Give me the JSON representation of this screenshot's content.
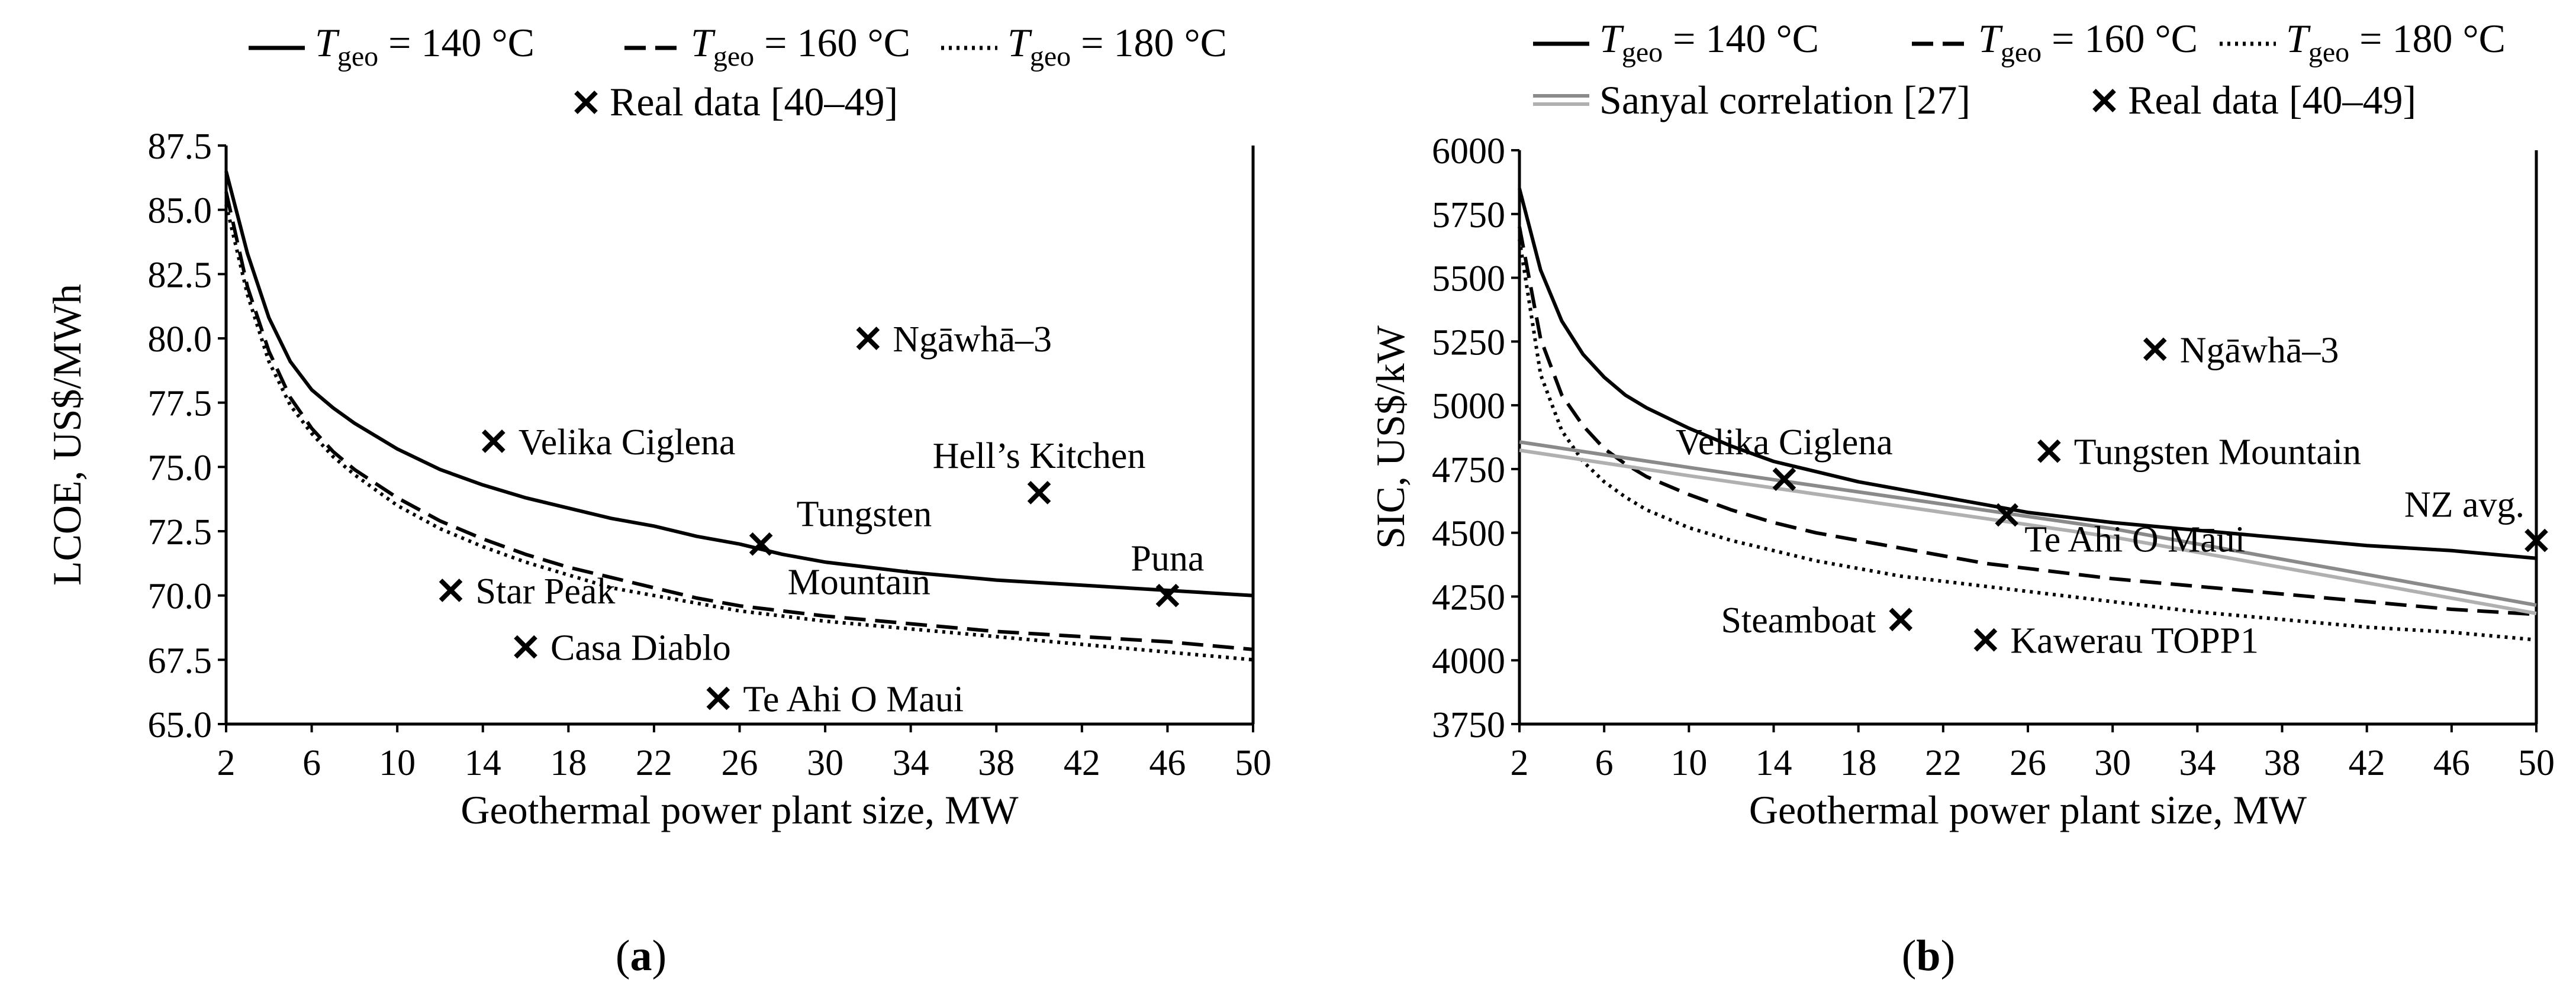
{
  "chart_data": [
    {
      "panel": "a",
      "type": "line",
      "caption": "(a)",
      "ylabel": "LCOE, US$/MWh",
      "xlabel": "Geothermal power plant size, MW",
      "xlim": [
        2,
        50
      ],
      "ylim": [
        65.0,
        87.5
      ],
      "xticks": [
        2,
        6,
        10,
        14,
        18,
        22,
        26,
        30,
        34,
        38,
        42,
        46,
        50
      ],
      "yticks": [
        65.0,
        67.5,
        70.0,
        72.5,
        75.0,
        77.5,
        80.0,
        82.5,
        85.0,
        87.5
      ],
      "ytick_labels": [
        "65.0",
        "67.5",
        "70.0",
        "72.5",
        "75.0",
        "77.5",
        "80.0",
        "82.5",
        "85.0",
        "87.5"
      ],
      "legend": {
        "prefix": "T",
        "subscript": "geo",
        "entries": [
          {
            "value_text": " = 140 °C",
            "style": "solid"
          },
          {
            "value_text": " = 160 °C",
            "style": "dashed"
          },
          {
            "value_text": " = 180 °C",
            "style": "dotted"
          }
        ],
        "real_data_label": "Real data [40–49]"
      },
      "series": [
        {
          "name": "T_geo = 140 °C",
          "style": "solid",
          "x": [
            2,
            3,
            4,
            5,
            6,
            7,
            8,
            10,
            12,
            14,
            16,
            18,
            20,
            22,
            24,
            26,
            28,
            30,
            34,
            38,
            42,
            46,
            50
          ],
          "y": [
            86.5,
            83.3,
            80.8,
            79.1,
            78.0,
            77.3,
            76.7,
            75.7,
            74.9,
            74.3,
            73.8,
            73.4,
            73.0,
            72.7,
            72.3,
            72.0,
            71.6,
            71.3,
            70.9,
            70.6,
            70.4,
            70.2,
            70.0
          ]
        },
        {
          "name": "T_geo = 160 °C",
          "style": "dashed",
          "x": [
            2,
            3,
            4,
            5,
            6,
            7,
            8,
            10,
            12,
            14,
            16,
            18,
            20,
            22,
            24,
            26,
            28,
            30,
            34,
            38,
            42,
            46,
            50
          ],
          "y": [
            85.7,
            82.0,
            79.5,
            77.7,
            76.5,
            75.6,
            74.9,
            73.8,
            72.9,
            72.2,
            71.6,
            71.1,
            70.7,
            70.3,
            69.9,
            69.6,
            69.4,
            69.2,
            68.9,
            68.6,
            68.4,
            68.2,
            67.9
          ]
        },
        {
          "name": "T_geo = 180 °C",
          "style": "dotted",
          "x": [
            2,
            3,
            4,
            5,
            6,
            7,
            8,
            10,
            12,
            14,
            16,
            18,
            20,
            22,
            24,
            26,
            28,
            30,
            34,
            38,
            42,
            46,
            50
          ],
          "y": [
            85.2,
            81.7,
            79.1,
            77.4,
            76.3,
            75.4,
            74.7,
            73.5,
            72.6,
            71.9,
            71.3,
            70.8,
            70.3,
            70.0,
            69.7,
            69.4,
            69.2,
            69.0,
            68.7,
            68.4,
            68.1,
            67.8,
            67.5
          ]
        }
      ],
      "points": [
        {
          "label": "Ngāwhā–3",
          "x": 32,
          "y": 80.0,
          "anchor": "right"
        },
        {
          "label": "Velika Ciglena",
          "x": 14.5,
          "y": 76.0,
          "anchor": "right"
        },
        {
          "label": "Hell’s Kitchen",
          "x": 40,
          "y": 74.0,
          "anchor": "above"
        },
        {
          "label": "Tungsten Mountain",
          "lines": [
            "Tungsten",
            "Mountain"
          ],
          "x": 27,
          "y": 72.0,
          "anchor": "split"
        },
        {
          "label": "Puna",
          "x": 46,
          "y": 70.0,
          "anchor": "above"
        },
        {
          "label": "Star Peak",
          "x": 12.5,
          "y": 70.2,
          "anchor": "right"
        },
        {
          "label": "Casa Diablo",
          "x": 16,
          "y": 68.0,
          "anchor": "right"
        },
        {
          "label": "Te Ahi O Maui",
          "x": 25,
          "y": 66.0,
          "anchor": "right"
        }
      ]
    },
    {
      "panel": "b",
      "type": "line",
      "caption": "(b)",
      "ylabel": "SIC, US$/kW",
      "xlabel": "Geothermal power plant size, MW",
      "xlim": [
        2,
        50
      ],
      "ylim": [
        3750,
        6000
      ],
      "xticks": [
        2,
        6,
        10,
        14,
        18,
        22,
        26,
        30,
        34,
        38,
        42,
        46,
        50
      ],
      "yticks": [
        3750,
        4000,
        4250,
        4500,
        4750,
        5000,
        5250,
        5500,
        5750,
        6000
      ],
      "ytick_labels": [
        "3750",
        "4000",
        "4250",
        "4500",
        "4750",
        "5000",
        "5250",
        "5500",
        "5750",
        "6000"
      ],
      "legend": {
        "prefix": "T",
        "subscript": "geo",
        "entries": [
          {
            "value_text": " = 140 °C",
            "style": "solid"
          },
          {
            "value_text": " = 160 °C",
            "style": "dashed"
          },
          {
            "value_text": " = 180 °C",
            "style": "dotted"
          }
        ],
        "sanyal_label": "Sanyal correlation [27]",
        "real_data_label": "Real data [40–49]"
      },
      "series": [
        {
          "name": "T_geo = 140 °C",
          "style": "solid",
          "x": [
            2,
            3,
            4,
            5,
            6,
            7,
            8,
            10,
            12,
            14,
            16,
            18,
            20,
            22,
            24,
            26,
            28,
            30,
            34,
            38,
            42,
            46,
            50
          ],
          "y": [
            5850,
            5530,
            5330,
            5200,
            5110,
            5040,
            4990,
            4910,
            4840,
            4780,
            4740,
            4700,
            4670,
            4640,
            4610,
            4580,
            4560,
            4540,
            4510,
            4480,
            4450,
            4430,
            4400
          ]
        },
        {
          "name": "T_geo = 160 °C",
          "style": "dashed",
          "x": [
            2,
            3,
            4,
            5,
            6,
            7,
            8,
            10,
            12,
            14,
            16,
            18,
            20,
            22,
            24,
            26,
            28,
            30,
            34,
            38,
            42,
            46,
            50
          ],
          "y": [
            5700,
            5260,
            5040,
            4920,
            4830,
            4770,
            4720,
            4650,
            4590,
            4540,
            4500,
            4470,
            4440,
            4410,
            4380,
            4360,
            4340,
            4320,
            4290,
            4260,
            4230,
            4200,
            4180
          ]
        },
        {
          "name": "T_geo = 180 °C",
          "style": "dotted",
          "x": [
            2,
            3,
            4,
            5,
            6,
            7,
            8,
            10,
            12,
            14,
            16,
            18,
            20,
            22,
            24,
            26,
            28,
            30,
            34,
            38,
            42,
            46,
            50
          ],
          "y": [
            5650,
            5120,
            4900,
            4780,
            4700,
            4640,
            4590,
            4520,
            4470,
            4430,
            4390,
            4360,
            4330,
            4310,
            4290,
            4270,
            4250,
            4230,
            4190,
            4160,
            4130,
            4110,
            4080
          ]
        },
        {
          "name": "Sanyal correlation",
          "style": "double-gray",
          "x": [
            2,
            10,
            20,
            30,
            40,
            50
          ],
          "y": [
            4840,
            4740,
            4620,
            4500,
            4350,
            4200
          ]
        }
      ],
      "points": [
        {
          "label": "Ngāwhā–3",
          "x": 32,
          "y": 5220,
          "anchor": "right"
        },
        {
          "label": "Velika Ciglena",
          "x": 14.5,
          "y": 4710,
          "anchor": "above"
        },
        {
          "label": "Tungsten Mountain",
          "x": 27,
          "y": 4820,
          "anchor": "right"
        },
        {
          "label": "Te Ahi O Māui",
          "x": 25,
          "y": 4570,
          "anchor": "below-right"
        },
        {
          "label": "NZ avg.",
          "x": 50,
          "y": 4470,
          "anchor": "above-left"
        },
        {
          "label": "Steamboat",
          "x": 20,
          "y": 4160,
          "anchor": "left"
        },
        {
          "label": "Kawerau TOPP1",
          "x": 24,
          "y": 4080,
          "anchor": "right"
        }
      ]
    }
  ]
}
